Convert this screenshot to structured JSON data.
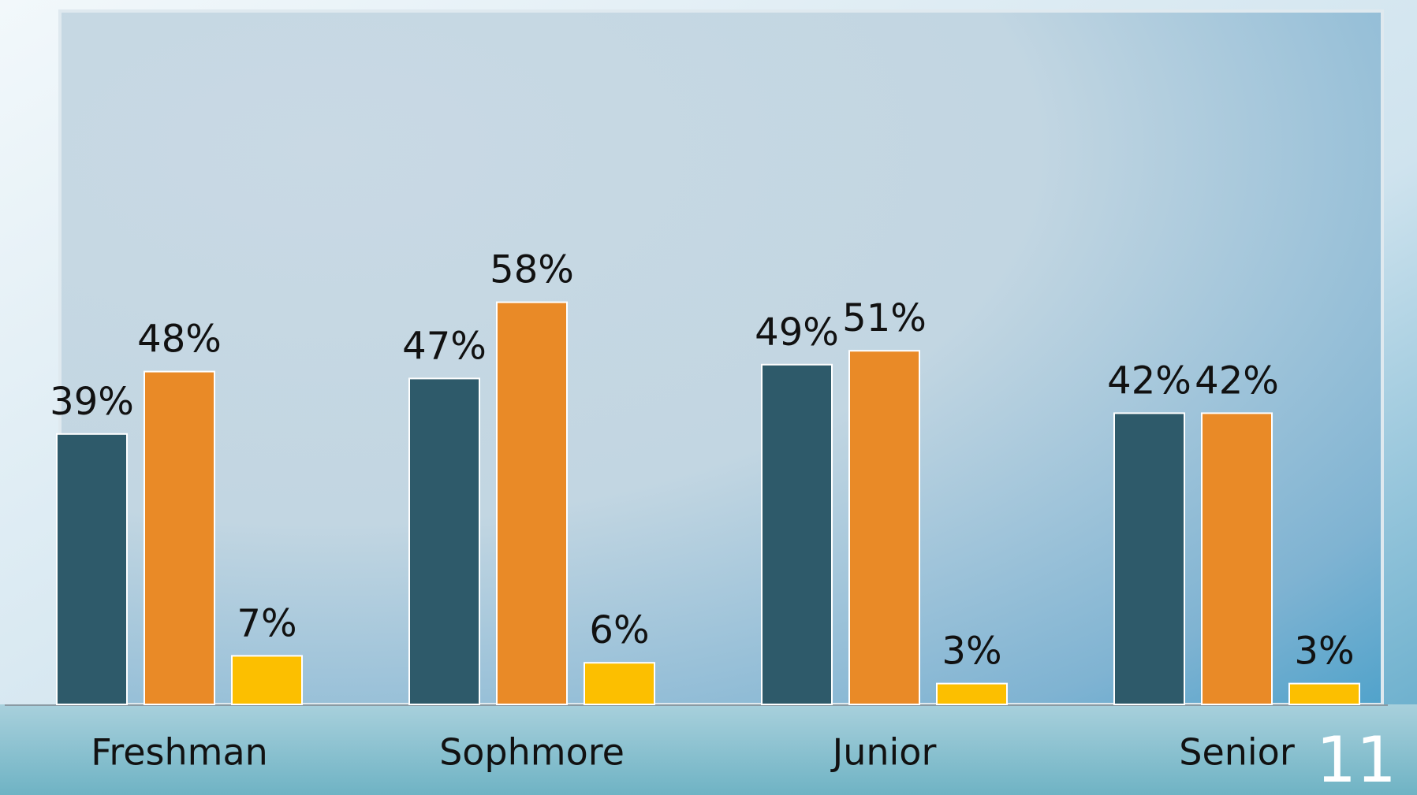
{
  "chart_data": {
    "type": "bar",
    "categories": [
      "Freshman",
      "Sophmore",
      "Junior",
      "Senior"
    ],
    "series": [
      {
        "color": "#2e5a6a",
        "values": [
          39,
          47,
          49,
          42
        ],
        "value_labels": [
          "39%",
          "47%",
          "49%",
          "42%"
        ]
      },
      {
        "color": "#e98a27",
        "values": [
          48,
          58,
          51,
          42
        ],
        "value_labels": [
          "48%",
          "58%",
          "51%",
          "42%"
        ]
      },
      {
        "color": "#fcbf00",
        "values": [
          7,
          6,
          3,
          3
        ],
        "value_labels": [
          "7%",
          "6%",
          "3%",
          "3%"
        ]
      }
    ],
    "ylim": [
      0,
      100
    ]
  },
  "page_number": "11"
}
